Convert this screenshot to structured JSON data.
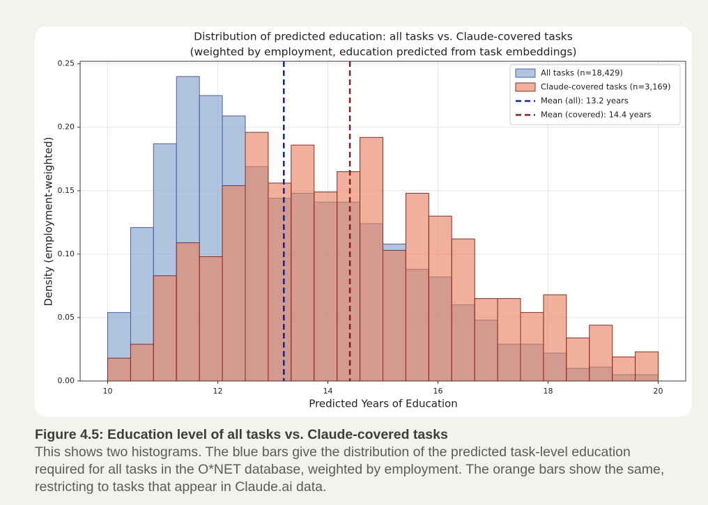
{
  "chart_data": {
    "type": "histogram",
    "title": "Distribution of predicted education: all tasks vs. Claude-covered tasks",
    "subtitle": "(weighted by employment, education predicted from task embeddings)",
    "x_label": "Predicted Years of Education",
    "y_label": "Density (employment-weighted)",
    "bins": [
      10,
      10.417,
      10.833,
      11.25,
      11.667,
      12.083,
      12.5,
      12.917,
      13.333,
      13.75,
      14.167,
      14.583,
      15,
      15.417,
      15.833,
      16.25,
      16.667,
      17.083,
      17.5,
      17.917,
      18.333,
      18.75,
      19.167,
      19.583,
      20
    ],
    "series": [
      {
        "name": "All tasks (n=18,429)",
        "color": "#7f9fcb",
        "edge_color": "#4a5fa8",
        "values": [
          0.054,
          0.121,
          0.187,
          0.24,
          0.225,
          0.209,
          0.169,
          0.144,
          0.148,
          0.141,
          0.141,
          0.124,
          0.108,
          0.088,
          0.082,
          0.06,
          0.048,
          0.029,
          0.029,
          0.022,
          0.01,
          0.011,
          0.005,
          0.005
        ]
      },
      {
        "name": "Claude-covered tasks (n=3,169)",
        "color": "#e8805e",
        "edge_color": "#8b2a1a",
        "values": [
          0.018,
          0.029,
          0.083,
          0.109,
          0.098,
          0.154,
          0.196,
          0.156,
          0.186,
          0.149,
          0.165,
          0.192,
          0.103,
          0.148,
          0.13,
          0.112,
          0.065,
          0.065,
          0.054,
          0.068,
          0.034,
          0.044,
          0.019,
          0.023
        ]
      }
    ],
    "mean_lines": [
      {
        "name": "Mean (all): 13.2 years",
        "value": 13.2,
        "color": "#14208c"
      },
      {
        "name": "Mean (covered): 14.4 years",
        "value": 14.4,
        "color": "#8b1c1c"
      }
    ],
    "xlim": [
      9.5,
      20.5
    ],
    "xticks": [
      10,
      12,
      14,
      16,
      18,
      20
    ],
    "ylim": [
      0,
      0.252
    ],
    "yticks": [
      {
        "value": 0,
        "label": "0.00"
      },
      {
        "value": 0.05,
        "label": "0.05"
      },
      {
        "value": 0.1,
        "label": "0.10"
      },
      {
        "value": 0.15,
        "label": "0.15"
      },
      {
        "value": 0.2,
        "label": "0.20"
      },
      {
        "value": 0.25,
        "label": "0.25"
      }
    ],
    "grid": true,
    "legend": "upper right"
  },
  "figure_caption": {
    "title": "Figure 4.5: Education level of all tasks vs. Claude-covered tasks",
    "text": "This shows two histograms. The blue bars give the distribution of the predicted task-level education required for all tasks in the O*NET database, weighted by employment. The orange bars show the same, restricting to tasks that appear in Claude.ai data."
  }
}
